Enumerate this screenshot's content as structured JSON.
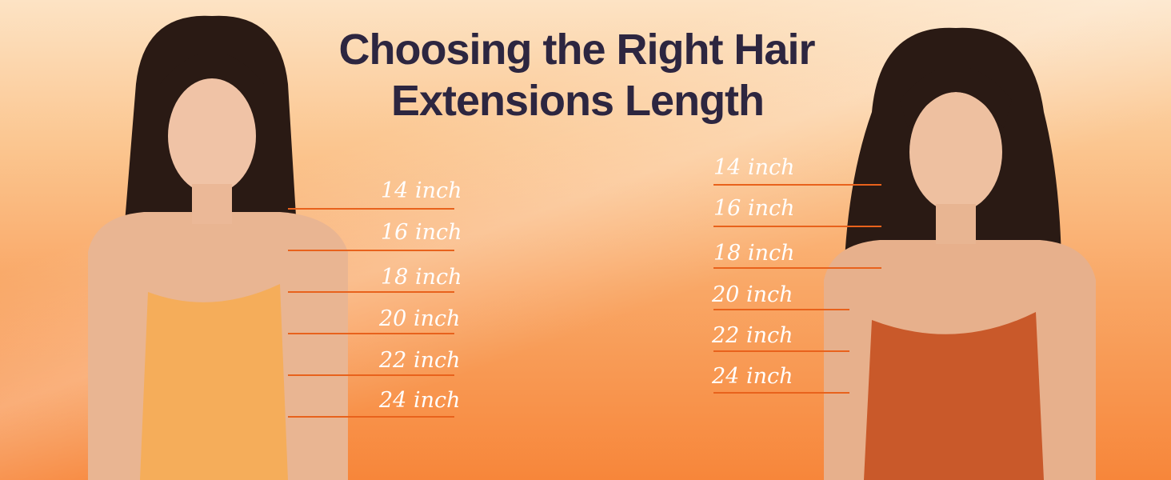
{
  "title": {
    "line1": "Choosing the Right Hair",
    "line2": "Extensions Length"
  },
  "left_model": {
    "hair": "straight",
    "top_color": "#f5ad5a",
    "labels": [
      "14 inch",
      "16 inch",
      "18 inch",
      "20 inch",
      "22 inch",
      "24 inch"
    ]
  },
  "right_model": {
    "hair": "wavy",
    "top_color": "#c9592a",
    "labels": [
      "14 inch",
      "16 inch",
      "18 inch",
      "20 inch",
      "22 inch",
      "24 inch"
    ]
  },
  "colors": {
    "title": "#2d2640",
    "marker": "#e8621c",
    "label": "#ffffff"
  }
}
